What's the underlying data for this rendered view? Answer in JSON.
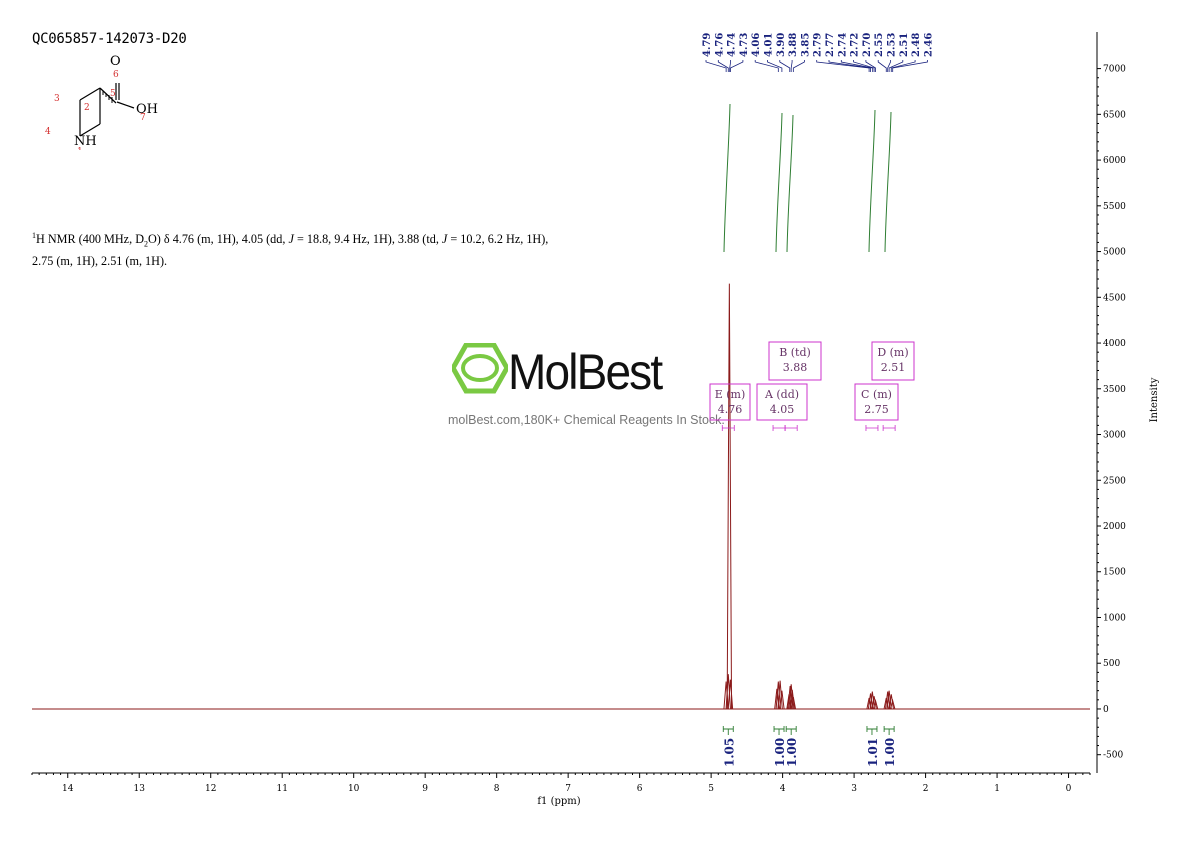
{
  "sample_id": "QC065857-142073-D20",
  "molecule": {
    "atoms": [
      {
        "label": "O",
        "number": "6"
      },
      {
        "label": "OH",
        "number": "7"
      },
      {
        "label": "NH",
        "number": "1"
      }
    ],
    "ring_numbers": [
      "3",
      "2",
      "4"
    ],
    "carbon_number": "5"
  },
  "nmr_description": {
    "nucleus_mass": "1",
    "line1": "H NMR (400 MHz, D",
    "sub": "2",
    "line1b": "O) δ 4.76 (m, 1H), 4.05 (dd, ",
    "j1": "J",
    "line1c": " = 18.8, 9.4 Hz, 1H), 3.88 (td, ",
    "j2": "J",
    "line1d": " = 10.2, 6.2 Hz, 1H),",
    "line2": "2.75 (m, 1H), 2.51 (m, 1H)."
  },
  "watermark": {
    "brand": "MolBest",
    "tagline": "molBest.com,180K+ Chemical Reagents In Stock."
  },
  "chart_data": {
    "type": "line",
    "xlabel": "f1 (ppm)",
    "ylabel": "Intensity",
    "xlim": [
      14.5,
      -0.3
    ],
    "ylim": [
      -700,
      7400
    ],
    "x_ticks": [
      "14",
      "13",
      "12",
      "11",
      "10",
      "9",
      "8",
      "7",
      "6",
      "5",
      "4",
      "3",
      "2",
      "1",
      "0"
    ],
    "y_ticks": [
      "7000",
      "6500",
      "6000",
      "5500",
      "5000",
      "4500",
      "4000",
      "3500",
      "3000",
      "2500",
      "2000",
      "1500",
      "1000",
      "500",
      "0",
      "-500"
    ],
    "peak_labels": [
      "4.79",
      "4.76",
      "4.74",
      "4.73",
      "4.06",
      "4.01",
      "3.90",
      "3.88",
      "3.85",
      "2.79",
      "2.77",
      "2.74",
      "2.72",
      "2.70",
      "2.55",
      "2.53",
      "2.51",
      "2.48",
      "2.46"
    ],
    "peaks": [
      {
        "ppm": 4.79,
        "height": 300
      },
      {
        "ppm": 4.76,
        "height": 380
      },
      {
        "ppm": 4.745,
        "height": 4650
      },
      {
        "ppm": 4.73,
        "height": 320
      },
      {
        "ppm": 4.08,
        "height": 220
      },
      {
        "ppm": 4.06,
        "height": 300
      },
      {
        "ppm": 4.035,
        "height": 310
      },
      {
        "ppm": 4.01,
        "height": 200
      },
      {
        "ppm": 3.91,
        "height": 160
      },
      {
        "ppm": 3.895,
        "height": 250
      },
      {
        "ppm": 3.88,
        "height": 270
      },
      {
        "ppm": 3.865,
        "height": 210
      },
      {
        "ppm": 3.85,
        "height": 130
      },
      {
        "ppm": 2.79,
        "height": 120
      },
      {
        "ppm": 2.77,
        "height": 170
      },
      {
        "ppm": 2.745,
        "height": 190
      },
      {
        "ppm": 2.72,
        "height": 140
      },
      {
        "ppm": 2.7,
        "height": 90
      },
      {
        "ppm": 2.55,
        "height": 120
      },
      {
        "ppm": 2.53,
        "height": 190
      },
      {
        "ppm": 2.51,
        "height": 200
      },
      {
        "ppm": 2.48,
        "height": 160
      },
      {
        "ppm": 2.46,
        "height": 90
      }
    ],
    "multiplets": [
      {
        "letter": "E",
        "type": "(m)",
        "shift": "4.76",
        "ppm": 4.76
      },
      {
        "letter": "A",
        "type": "(dd)",
        "shift": "4.05",
        "ppm": 4.05
      },
      {
        "letter": "B",
        "type": "(td)",
        "shift": "3.88",
        "ppm": 3.88
      },
      {
        "letter": "C",
        "type": "(m)",
        "shift": "2.75",
        "ppm": 2.75
      },
      {
        "letter": "D",
        "type": "(m)",
        "shift": "2.51",
        "ppm": 2.51
      }
    ],
    "integrals": [
      {
        "ppm": 4.76,
        "value": "1.05"
      },
      {
        "ppm": 4.05,
        "value": "1.00"
      },
      {
        "ppm": 3.88,
        "value": "1.00"
      },
      {
        "ppm": 2.75,
        "value": "1.01"
      },
      {
        "ppm": 2.51,
        "value": "1.00"
      }
    ],
    "colors": {
      "spectrum": "#8b1a1a",
      "peak_label": "#1a237e",
      "integral": "#2e7d32",
      "multiplet_box": "#cc33cc"
    }
  }
}
